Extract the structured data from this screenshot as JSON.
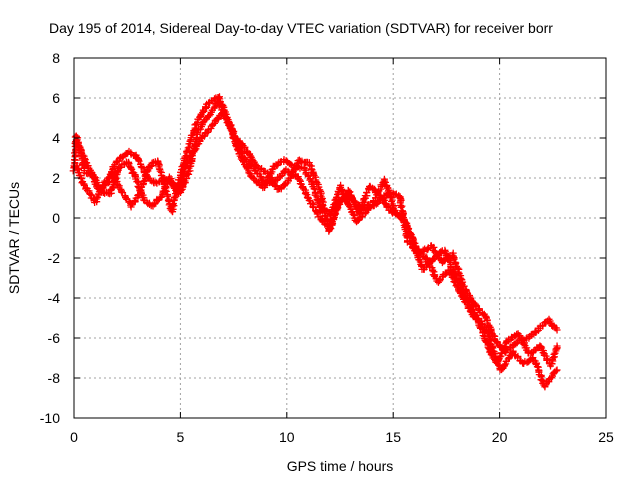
{
  "chart_data": {
    "type": "scatter",
    "title": "Day 195 of 2014, Sidereal Day-to-day VTEC variation (SDTVAR) for receiver borr",
    "xlabel": "GPS time / hours",
    "ylabel": "SDTVAR / TECUs",
    "xlim": [
      0,
      25
    ],
    "ylim": [
      -10,
      8
    ],
    "grid": true,
    "marker": "+",
    "x_ticks": [
      "0",
      "5",
      "10",
      "15",
      "20",
      "25"
    ],
    "y_ticks": [
      "-10",
      "-8",
      "-6",
      "-4",
      "-2",
      "0",
      "2",
      "4",
      "6",
      "8"
    ],
    "series": [
      {
        "name": "SDTVAR",
        "color": "#ff0000",
        "tracks": [
          [
            [
              0.0,
              2.4
            ],
            [
              0.1,
              4.1
            ],
            [
              0.3,
              3.4
            ],
            [
              0.5,
              2.3
            ],
            [
              0.8,
              2.2
            ],
            [
              1.2,
              1.4
            ],
            [
              1.6,
              1.8
            ],
            [
              1.9,
              2.7
            ],
            [
              2.2,
              3.0
            ],
            [
              2.6,
              3.3
            ],
            [
              3.0,
              3.0
            ],
            [
              3.4,
              2.1
            ],
            [
              3.8,
              1.7
            ],
            [
              4.2,
              2.0
            ],
            [
              4.6,
              1.8
            ],
            [
              5.0,
              1.3
            ],
            [
              5.4,
              2.3
            ],
            [
              5.8,
              4.3
            ],
            [
              6.3,
              5.1
            ],
            [
              6.8,
              5.8
            ],
            [
              7.3,
              4.6
            ],
            [
              7.8,
              3.1
            ],
            [
              8.4,
              2.0
            ],
            [
              8.9,
              1.5
            ],
            [
              9.4,
              2.6
            ],
            [
              9.9,
              2.9
            ],
            [
              10.3,
              2.6
            ],
            [
              10.8,
              2.5
            ],
            [
              11.2,
              1.7
            ],
            [
              11.6,
              0.4
            ],
            [
              12.1,
              0.2
            ],
            [
              12.5,
              1.6
            ],
            [
              12.9,
              0.7
            ],
            [
              13.3,
              -0.2
            ],
            [
              13.8,
              0.4
            ],
            [
              14.3,
              0.8
            ],
            [
              14.8,
              1.3
            ],
            [
              15.3,
              1.1
            ],
            [
              15.7,
              -1.2
            ],
            [
              16.2,
              -1.8
            ],
            [
              16.8,
              -1.4
            ],
            [
              17.3,
              -2.2
            ],
            [
              17.8,
              -1.8
            ],
            [
              18.3,
              -3.4
            ],
            [
              18.8,
              -4.3
            ],
            [
              19.3,
              -4.9
            ],
            [
              19.8,
              -6.1
            ],
            [
              20.3,
              -6.7
            ],
            [
              20.8,
              -6.2
            ],
            [
              21.3,
              -6.0
            ],
            [
              21.8,
              -5.6
            ],
            [
              22.3,
              -5.1
            ],
            [
              22.7,
              -5.6
            ]
          ],
          [
            [
              0.1,
              2.6
            ],
            [
              0.4,
              1.8
            ],
            [
              0.7,
              1.3
            ],
            [
              1.0,
              0.8
            ],
            [
              1.4,
              1.7
            ],
            [
              1.8,
              2.2
            ],
            [
              2.2,
              1.4
            ],
            [
              2.7,
              0.6
            ],
            [
              3.1,
              1.2
            ],
            [
              3.5,
              2.5
            ],
            [
              3.9,
              2.9
            ],
            [
              4.3,
              1.5
            ],
            [
              4.6,
              0.3
            ],
            [
              4.9,
              1.8
            ],
            [
              5.3,
              3.3
            ],
            [
              5.8,
              4.9
            ],
            [
              6.3,
              5.7
            ],
            [
              6.8,
              6.1
            ],
            [
              7.2,
              5.0
            ],
            [
              7.6,
              4.0
            ],
            [
              8.1,
              3.4
            ],
            [
              8.6,
              2.6
            ],
            [
              9.1,
              2.2
            ],
            [
              9.6,
              1.4
            ],
            [
              10.1,
              1.9
            ],
            [
              10.6,
              2.9
            ],
            [
              11.1,
              2.7
            ],
            [
              11.6,
              1.2
            ],
            [
              12.0,
              -0.7
            ],
            [
              12.4,
              0.6
            ],
            [
              12.9,
              1.4
            ],
            [
              13.4,
              0.2
            ],
            [
              13.9,
              1.6
            ],
            [
              14.4,
              1.1
            ],
            [
              14.9,
              0.3
            ],
            [
              15.4,
              0.1
            ],
            [
              15.9,
              -1.0
            ],
            [
              16.4,
              -2.6
            ],
            [
              16.9,
              -2.0
            ],
            [
              17.4,
              -1.6
            ],
            [
              17.9,
              -2.8
            ],
            [
              18.4,
              -3.9
            ],
            [
              18.9,
              -4.9
            ],
            [
              19.4,
              -5.6
            ],
            [
              19.9,
              -7.2
            ],
            [
              20.4,
              -6.1
            ],
            [
              20.9,
              -5.8
            ],
            [
              21.4,
              -6.8
            ],
            [
              21.9,
              -6.4
            ],
            [
              22.4,
              -7.4
            ],
            [
              22.7,
              -6.4
            ]
          ],
          [
            [
              0.2,
              3.7
            ],
            [
              0.5,
              2.9
            ],
            [
              0.9,
              2.1
            ],
            [
              1.3,
              1.3
            ],
            [
              1.7,
              1.2
            ],
            [
              2.1,
              2.5
            ],
            [
              2.5,
              2.8
            ],
            [
              2.9,
              2.0
            ],
            [
              3.3,
              0.9
            ],
            [
              3.7,
              0.6
            ],
            [
              4.1,
              1.1
            ],
            [
              4.5,
              2.0
            ],
            [
              4.9,
              1.2
            ],
            [
              5.3,
              2.7
            ],
            [
              5.8,
              3.7
            ],
            [
              6.4,
              4.5
            ],
            [
              7.0,
              5.3
            ],
            [
              7.5,
              4.2
            ],
            [
              8.0,
              3.0
            ],
            [
              8.5,
              2.4
            ],
            [
              9.0,
              1.7
            ],
            [
              9.5,
              1.9
            ],
            [
              10.0,
              2.4
            ],
            [
              10.5,
              2.1
            ],
            [
              11.0,
              1.0
            ],
            [
              11.5,
              0.1
            ],
            [
              12.0,
              -0.5
            ],
            [
              12.5,
              0.9
            ],
            [
              13.0,
              1.0
            ],
            [
              13.5,
              0.5
            ],
            [
              14.0,
              0.7
            ],
            [
              14.6,
              1.9
            ],
            [
              15.1,
              0.3
            ],
            [
              15.6,
              -0.3
            ],
            [
              16.1,
              -1.5
            ],
            [
              16.6,
              -2.1
            ],
            [
              17.1,
              -3.2
            ],
            [
              17.6,
              -2.6
            ],
            [
              18.1,
              -3.6
            ],
            [
              18.6,
              -4.6
            ],
            [
              19.1,
              -5.4
            ],
            [
              19.6,
              -6.8
            ],
            [
              20.1,
              -7.6
            ],
            [
              20.6,
              -6.7
            ],
            [
              21.1,
              -7.3
            ],
            [
              21.6,
              -7.0
            ],
            [
              22.1,
              -8.4
            ],
            [
              22.7,
              -7.6
            ]
          ]
        ]
      }
    ]
  }
}
